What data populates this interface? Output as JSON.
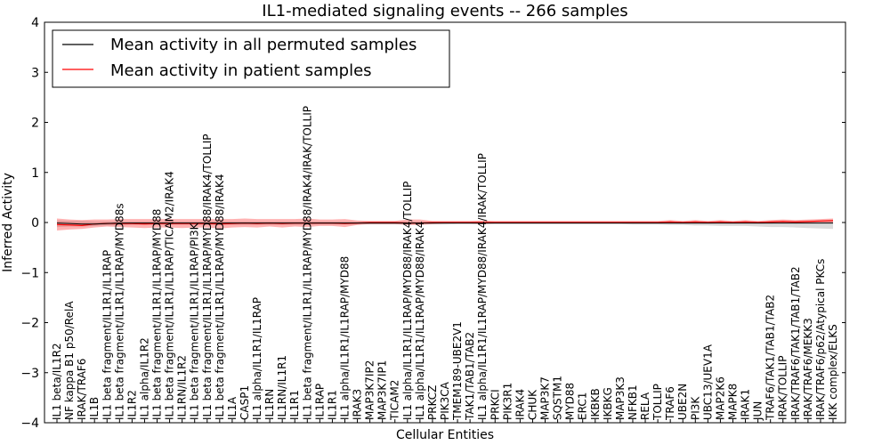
{
  "chart_data": {
    "type": "line",
    "title": "IL1-mediated signaling events -- 266 samples",
    "xlabel": "Cellular Entities",
    "ylabel": "Inferred Activity",
    "ylim": [
      -4,
      4
    ],
    "yticks": [
      "4",
      "3",
      "2",
      "1",
      "0",
      "−1",
      "−2",
      "−3",
      "−4"
    ],
    "legend": {
      "position": "top-left",
      "entries": [
        {
          "label": "Mean activity in all permuted samples",
          "color": "#000000"
        },
        {
          "label": "Mean activity in patient samples",
          "color": "#ff0000"
        }
      ]
    },
    "categories": [
      "IL1 beta/IL1R2",
      "NF kappa B1 p50/RelA",
      "IRAK/TRAF6",
      "IL1B",
      "IL1 beta fragment/IL1R1/IL1RAP",
      "IL1 beta fragment/IL1R1/IL1RAP/MYD88s",
      "IL1R2",
      "IL1 alpha/IL1R2",
      "IL1 beta fragment/IL1R1/IL1RAP/MYD88",
      "IL1 beta fragment/IL1R1/IL1RAP/TICAM2/IRAK4",
      "IL1RN/IL1R2",
      "IL1 beta fragment/IL1R1/IL1RAP/PI3K",
      "IL1 beta fragment/IL1R1/IL1RAP/MYD88/IRAK4/TOLLIP",
      "IL1 beta fragment/IL1R1/IL1RAP/MYD88/IRAK4",
      "IL1A",
      "CASP1",
      "IL1 alpha/IL1R1/IL1RAP",
      "IL1RN",
      "IL1RN/IL1R1",
      "IL1R1",
      "IL1 beta fragment/IL1R1/IL1RAP/MYD88/IRAK4/IRAK/TOLLIP",
      "IL1RAP",
      "IL1R1",
      "IL1 alpha/IL1R1/IL1RAP/MYD88",
      "IRAK3",
      "MAP3K7IP2",
      "MAP3K7IP1",
      "TICAM2",
      "IL1 alpha/IL1R1/IL1RAP/MYD88/IRAK4/TOLLIP",
      "IL1 alpha/IL1R1/IL1RAP/MYD88/IRAK4",
      "PRKCZ",
      "PIK3CA",
      "TMEM189-UBE2V1",
      "TAK1/TAB1/TAB2",
      "IL1 alpha/IL1R1/IL1RAP/MYD88/IRAK4/IRAK/TOLLIP",
      "PRKCI",
      "PIK3R1",
      "IRAK4",
      "CHUK",
      "MAP3K7",
      "SQSTM1",
      "MYD88",
      "ERC1",
      "IKBKB",
      "IKBKG",
      "MAP3K3",
      "NFKB1",
      "RELA",
      "TOLLIP",
      "TRAF6",
      "UBE2N",
      "PI3K",
      "UBC13/UEV1A",
      "MAP2K6",
      "MAPK8",
      "IRAK1",
      "JUN",
      "TRAF6/TAK1/TAB1/TAB2",
      "IRAK/TOLLIP",
      "IRAK/TRAF6/TAK1/TAB1/TAB2",
      "IRAK/TRAF6/MEKK3",
      "IRAK/TRAF6/p62/Atypical PKCs",
      "IKK complex/ELKS"
    ],
    "series": [
      {
        "name": "Mean activity in all permuted samples",
        "color": "#000000",
        "values": [
          -0.01,
          -0.02,
          -0.03,
          -0.03,
          -0.02,
          -0.01,
          -0.01,
          -0.01,
          -0.01,
          -0.01,
          -0.01,
          -0.01,
          -0.01,
          -0.01,
          -0.01,
          -0.01,
          -0.01,
          -0.01,
          -0.01,
          -0.01,
          -0.01,
          -0.01,
          -0.01,
          -0.01,
          -0.01,
          -0.01,
          -0.01,
          -0.01,
          -0.01,
          -0.01,
          -0.01,
          -0.01,
          -0.01,
          -0.01,
          -0.01,
          -0.01,
          -0.01,
          -0.01,
          -0.01,
          -0.01,
          -0.01,
          -0.01,
          -0.01,
          -0.01,
          -0.01,
          -0.01,
          -0.01,
          -0.01,
          -0.01,
          -0.01,
          -0.01,
          -0.01,
          -0.01,
          -0.01,
          -0.01,
          -0.01,
          -0.01,
          -0.01,
          -0.01,
          -0.01,
          -0.01,
          -0.01,
          -0.01
        ],
        "lower": [
          -0.09,
          -0.08,
          -0.08,
          -0.07,
          -0.06,
          -0.06,
          -0.05,
          -0.05,
          -0.05,
          -0.05,
          -0.05,
          -0.05,
          -0.05,
          -0.05,
          -0.05,
          -0.05,
          -0.05,
          -0.05,
          -0.05,
          -0.05,
          -0.05,
          -0.04,
          -0.04,
          -0.04,
          -0.04,
          -0.04,
          -0.04,
          -0.04,
          -0.04,
          -0.04,
          -0.04,
          -0.04,
          -0.03,
          -0.03,
          -0.03,
          -0.03,
          -0.03,
          -0.03,
          -0.03,
          -0.03,
          -0.03,
          -0.03,
          -0.03,
          -0.03,
          -0.03,
          -0.03,
          -0.04,
          -0.04,
          -0.04,
          -0.05,
          -0.05,
          -0.06,
          -0.06,
          -0.07,
          -0.07,
          -0.07,
          -0.08,
          -0.09,
          -0.09,
          -0.1,
          -0.11,
          -0.12,
          -0.13
        ],
        "upper": [
          0.04,
          0.03,
          0.03,
          0.02,
          0.02,
          0.02,
          0.02,
          0.02,
          0.02,
          0.02,
          0.02,
          0.02,
          0.02,
          0.02,
          0.02,
          0.02,
          0.02,
          0.02,
          0.02,
          0.02,
          0.02,
          0.02,
          0.02,
          0.02,
          0.02,
          0.02,
          0.02,
          0.02,
          0.02,
          0.02,
          0.02,
          0.02,
          0.02,
          0.02,
          0.02,
          0.02,
          0.02,
          0.02,
          0.02,
          0.02,
          0.02,
          0.02,
          0.02,
          0.02,
          0.02,
          0.02,
          0.02,
          0.02,
          0.02,
          0.02,
          0.02,
          0.02,
          0.02,
          0.02,
          0.02,
          0.02,
          0.02,
          0.02,
          0.02,
          0.03,
          0.03,
          0.03,
          0.03
        ]
      },
      {
        "name": "Mean activity in patient samples",
        "color": "#ff0000",
        "values": [
          -0.04,
          -0.05,
          -0.06,
          -0.03,
          -0.02,
          -0.02,
          -0.02,
          -0.03,
          -0.02,
          -0.02,
          -0.02,
          -0.02,
          -0.02,
          -0.03,
          -0.02,
          -0.01,
          -0.02,
          -0.01,
          -0.02,
          -0.01,
          -0.01,
          -0.01,
          -0.01,
          -0.02,
          -0.01,
          0.0,
          0.0,
          0.0,
          -0.01,
          -0.01,
          0.0,
          0.0,
          0.0,
          0.0,
          0.0,
          0.0,
          0.0,
          0.0,
          0.0,
          0.0,
          0.0,
          0.0,
          0.0,
          0.0,
          0.0,
          0.0,
          0.0,
          0.0,
          0.0,
          0.01,
          0.0,
          0.01,
          0.0,
          0.01,
          0.0,
          0.01,
          0.0,
          0.01,
          0.02,
          0.01,
          0.02,
          0.03,
          0.04
        ],
        "lower": [
          -0.16,
          -0.14,
          -0.13,
          -0.1,
          -0.08,
          -0.09,
          -0.1,
          -0.11,
          -0.1,
          -0.1,
          -0.11,
          -0.1,
          -0.1,
          -0.12,
          -0.1,
          -0.09,
          -0.1,
          -0.08,
          -0.1,
          -0.08,
          -0.09,
          -0.07,
          -0.07,
          -0.09,
          -0.05,
          -0.03,
          -0.03,
          -0.03,
          -0.05,
          -0.05,
          -0.03,
          -0.02,
          -0.02,
          -0.02,
          -0.03,
          -0.02,
          -0.02,
          -0.02,
          -0.02,
          -0.02,
          -0.02,
          -0.02,
          -0.02,
          -0.02,
          -0.02,
          -0.02,
          -0.02,
          -0.02,
          -0.02,
          -0.02,
          -0.02,
          -0.02,
          -0.02,
          -0.02,
          -0.02,
          -0.02,
          -0.02,
          -0.02,
          -0.01,
          -0.02,
          -0.01,
          0.0,
          0.0
        ],
        "upper": [
          0.08,
          0.06,
          0.05,
          0.06,
          0.06,
          0.07,
          0.07,
          0.07,
          0.07,
          0.07,
          0.07,
          0.07,
          0.07,
          0.07,
          0.07,
          0.08,
          0.07,
          0.07,
          0.07,
          0.07,
          0.08,
          0.06,
          0.06,
          0.07,
          0.04,
          0.03,
          0.03,
          0.03,
          0.06,
          0.06,
          0.03,
          0.03,
          0.03,
          0.03,
          0.04,
          0.03,
          0.03,
          0.03,
          0.03,
          0.03,
          0.03,
          0.03,
          0.03,
          0.03,
          0.03,
          0.03,
          0.03,
          0.03,
          0.03,
          0.05,
          0.03,
          0.05,
          0.03,
          0.05,
          0.03,
          0.05,
          0.03,
          0.05,
          0.06,
          0.05,
          0.06,
          0.07,
          0.08
        ]
      }
    ]
  }
}
